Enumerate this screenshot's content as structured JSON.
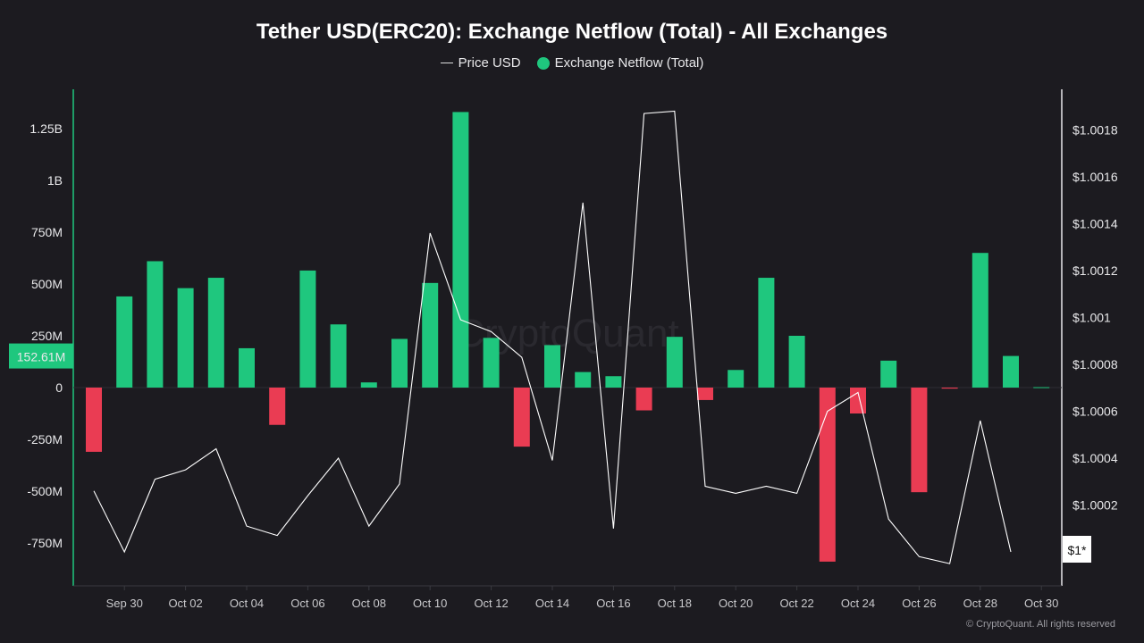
{
  "chart_data": {
    "type": "bar",
    "title": "Tether USD(ERC20): Exchange Netflow (Total) - All Exchanges",
    "legend": [
      {
        "name": "Price USD",
        "type": "line",
        "color": "#e8e8ea"
      },
      {
        "name": "Exchange Netflow (Total)",
        "type": "bar",
        "color": "#1fc77e"
      }
    ],
    "legend_placement": "top-center",
    "colors": {
      "positive": "#1fc77e",
      "negative": "#ea3c53",
      "price_line": "#ffffff",
      "background": "#1c1b20"
    },
    "categories": [
      "Sep 29",
      "Sep 30",
      "Oct 01",
      "Oct 02",
      "Oct 03",
      "Oct 04",
      "Oct 05",
      "Oct 06",
      "Oct 07",
      "Oct 08",
      "Oct 09",
      "Oct 10",
      "Oct 11",
      "Oct 12",
      "Oct 13",
      "Oct 14",
      "Oct 15",
      "Oct 16",
      "Oct 17",
      "Oct 18",
      "Oct 19",
      "Oct 20",
      "Oct 21",
      "Oct 22",
      "Oct 23",
      "Oct 24",
      "Oct 25",
      "Oct 26",
      "Oct 27",
      "Oct 28",
      "Oct 29",
      "Oct 30"
    ],
    "x_tick_labels": [
      "Sep 30",
      "Oct 02",
      "Oct 04",
      "Oct 06",
      "Oct 08",
      "Oct 10",
      "Oct 12",
      "Oct 14",
      "Oct 16",
      "Oct 18",
      "Oct 20",
      "Oct 22",
      "Oct 24",
      "Oct 26",
      "Oct 28",
      "Oct 30"
    ],
    "series": [
      {
        "name": "Exchange Netflow (Total)",
        "axis": "left",
        "unit": "M",
        "values": [
          -310,
          440,
          610,
          480,
          530,
          190,
          -180,
          565,
          305,
          25,
          235,
          505,
          1330,
          240,
          -285,
          205,
          75,
          55,
          -110,
          245,
          -60,
          85,
          530,
          250,
          -840,
          -125,
          130,
          -505,
          -5,
          650,
          152.61,
          2
        ]
      },
      {
        "name": "Price USD",
        "axis": "right",
        "values": [
          1.00026,
          1.0,
          1.00031,
          1.00035,
          1.00044,
          1.00011,
          1.00007,
          1.00024,
          1.0004,
          1.00011,
          1.00029,
          1.00136,
          1.00099,
          1.00094,
          1.00083,
          1.00039,
          1.00149,
          1.0001,
          1.00187,
          1.00188,
          1.00028,
          1.00025,
          1.00028,
          1.00025,
          1.0006,
          1.00068,
          1.00014,
          0.99998,
          0.99995,
          1.00056,
          1.0,
          null
        ]
      }
    ],
    "left_axis": {
      "ticks": [
        1250,
        1000,
        750,
        500,
        250,
        0,
        -250,
        -500,
        -750
      ],
      "tick_labels": [
        "1.25B",
        "1B",
        "750M",
        "500M",
        "250M",
        "0",
        "-250M",
        "-500M",
        "-750M"
      ],
      "range": [
        -950,
        1430
      ]
    },
    "right_axis": {
      "ticks": [
        1.0018,
        1.0016,
        1.0014,
        1.0012,
        1.001,
        1.0008,
        1.0006,
        1.0004,
        1.0002
      ],
      "tick_labels": [
        "$1.0018",
        "$1.0016",
        "$1.0014",
        "$1.0012",
        "$1.001",
        "$1.0008",
        "$1.0006",
        "$1.0004",
        "$1.0002"
      ]
    },
    "current_value_labels": {
      "netflow": "152.61M",
      "price": "$1*"
    },
    "grid": false,
    "watermark": "CryptoQuant"
  },
  "footer": {
    "copyright": "© CryptoQuant. All rights reserved"
  }
}
